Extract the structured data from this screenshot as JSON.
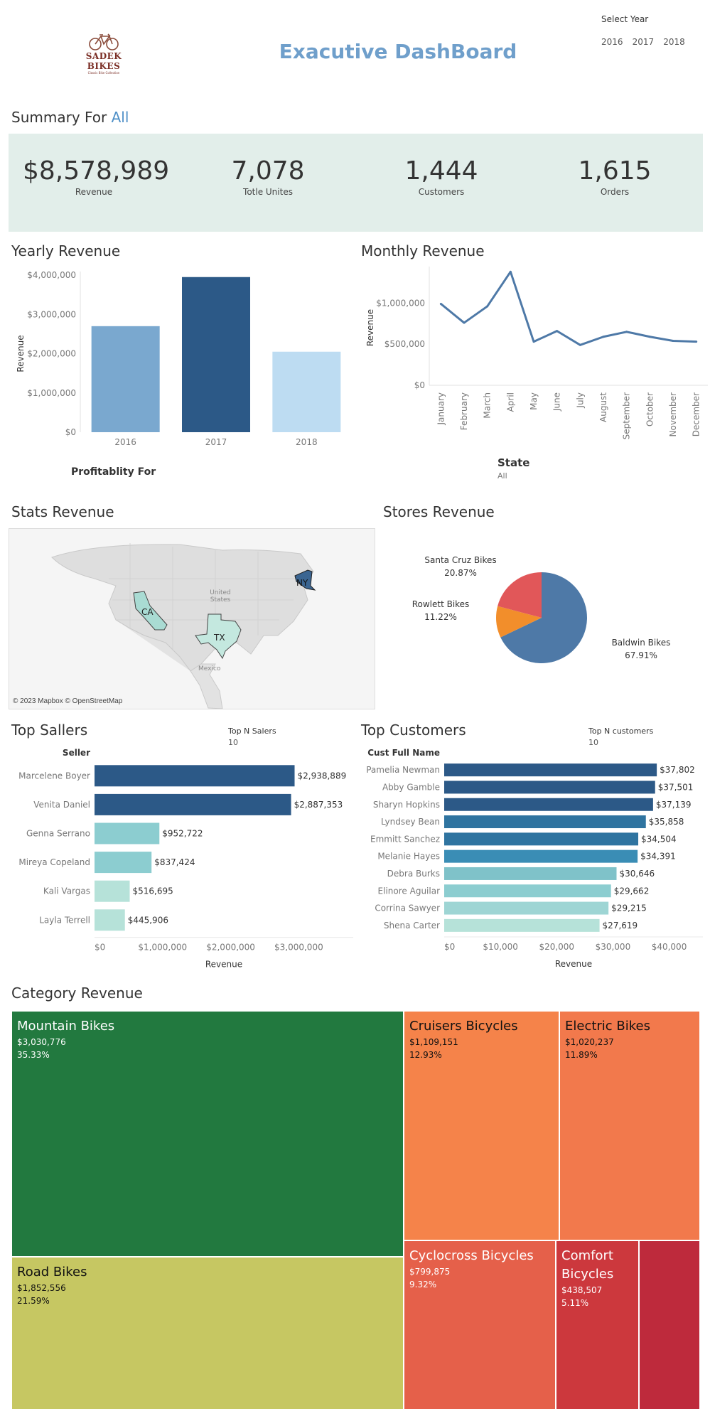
{
  "header": {
    "logo_text": "SADEK BIKES",
    "logo_sub": "Classic Bike Collection",
    "title": "Exacutive DashBoard",
    "year_filter_label": "Select Year",
    "year_options": [
      "2016",
      "2017",
      "2018"
    ]
  },
  "summary": {
    "title_prefix": "Summary For",
    "title_value": "All",
    "kpis": [
      {
        "value": "$8,578,989",
        "label": "Revenue"
      },
      {
        "value": "7,078",
        "label": "Totle Unites"
      },
      {
        "value": "1,444",
        "label": "Customers"
      },
      {
        "value": "1,615",
        "label": "Orders"
      }
    ]
  },
  "yearly": {
    "title": "Yearly Revenue"
  },
  "monthly": {
    "title": "Monthly Revenue"
  },
  "profitability_label": "Profitablity For",
  "state_filter": {
    "label": "State",
    "value": "All"
  },
  "stats_map": {
    "title": "Stats Revenue",
    "states": [
      "CA",
      "TX",
      "NY"
    ],
    "labels": {
      "country": "United States",
      "mexico": "Mexico"
    },
    "attribution": "© 2023 Mapbox © OpenStreetMap"
  },
  "stores": {
    "title": "Stores Revenue"
  },
  "top_sellers": {
    "title": "Top Sallers",
    "filter_label": "Top N Salers",
    "filter_value": "10",
    "column_header": "Seller"
  },
  "top_customers": {
    "title": "Top Customers",
    "filter_label": "Top N customers",
    "filter_value": "10",
    "column_header": "Cust Full Name"
  },
  "category": {
    "title": "Category Revenue"
  },
  "colors": {
    "accent": "#4e79a7",
    "kpi_band": "#e2eeea",
    "title_blue": "#6f9fcb"
  },
  "chart_data": [
    {
      "id": "yearly",
      "type": "bar",
      "categories": [
        "2016",
        "2017",
        "2018"
      ],
      "values": [
        2700000,
        3950000,
        2050000
      ],
      "colors": [
        "#7aa8cf",
        "#2c5987",
        "#bddcf2"
      ],
      "ylabel": "Revenue",
      "ylim": [
        0,
        4000000
      ],
      "yticks": [
        "$0",
        "$1,000,000",
        "$2,000,000",
        "$3,000,000",
        "$4,000,000"
      ]
    },
    {
      "id": "monthly",
      "type": "line",
      "categories": [
        "January",
        "February",
        "March",
        "April",
        "May",
        "June",
        "July",
        "August",
        "September",
        "October",
        "November",
        "December"
      ],
      "values": [
        990000,
        760000,
        960000,
        1380000,
        530000,
        660000,
        490000,
        590000,
        650000,
        590000,
        540000,
        530000
      ],
      "ylabel": "Revenue",
      "ylim": [
        0,
        1400000
      ],
      "yticks": [
        "$0",
        "$500,000",
        "$1,000,000"
      ]
    },
    {
      "id": "stores",
      "type": "pie",
      "slices": [
        {
          "name": "Baldwin Bikes",
          "pct_label": "67.91%",
          "value": 67.91,
          "color": "#4e79a7"
        },
        {
          "name": "Rowlett Bikes",
          "pct_label": "11.22%",
          "value": 11.22,
          "color": "#f28e2b"
        },
        {
          "name": "Santa Cruz Bikes",
          "pct_label": "20.87%",
          "value": 20.87,
          "color": "#e15759"
        }
      ]
    },
    {
      "id": "sellers",
      "type": "bar",
      "orientation": "horizontal",
      "categories": [
        "Marcelene Boyer",
        "Venita Daniel",
        "Genna Serrano",
        "Mireya Copeland",
        "Kali Vargas",
        "Layla Terrell"
      ],
      "values": [
        2938889,
        2887353,
        952722,
        837424,
        516695,
        445906
      ],
      "value_labels": [
        "$2,938,889",
        "$2,887,353",
        "$952,722",
        "$837,424",
        "$516,695",
        "$445,906"
      ],
      "colors": [
        "#2c5987",
        "#2c5987",
        "#8ccdd0",
        "#8ccdd0",
        "#b6e2d9",
        "#b6e2d9"
      ],
      "xlabel": "Revenue",
      "xlim": [
        0,
        3800000
      ],
      "xticks": [
        {
          "v": 0,
          "t": "$0"
        },
        {
          "v": 1000000,
          "t": "$1,000,000"
        },
        {
          "v": 2000000,
          "t": "$2,000,000"
        },
        {
          "v": 3000000,
          "t": "$3,000,000"
        }
      ]
    },
    {
      "id": "customers",
      "type": "bar",
      "orientation": "horizontal",
      "categories": [
        "Pamelia Newman",
        "Abby Gamble",
        "Sharyn Hopkins",
        "Lyndsey Bean",
        "Emmitt Sanchez",
        "Melanie Hayes",
        "Debra Burks",
        "Elinore Aguilar",
        "Corrina Sawyer",
        "Shena Carter"
      ],
      "values": [
        37802,
        37501,
        37139,
        35858,
        34504,
        34391,
        30646,
        29662,
        29215,
        27619
      ],
      "value_labels": [
        "$37,802",
        "$37,501",
        "$37,139",
        "$35,858",
        "$34,504",
        "$34,391",
        "$30,646",
        "$29,662",
        "$29,215",
        "$27,619"
      ],
      "colors": [
        "#2c5987",
        "#2c5987",
        "#2c5987",
        "#2f74a0",
        "#2f74a0",
        "#3a8db5",
        "#7fc2c9",
        "#8ccdd0",
        "#9ed5d4",
        "#b6e2d9"
      ],
      "xlabel": "Revenue",
      "xlim": [
        0,
        46000
      ],
      "xticks": [
        {
          "v": 0,
          "t": "$0"
        },
        {
          "v": 10000,
          "t": "$10,000"
        },
        {
          "v": 20000,
          "t": "$20,000"
        },
        {
          "v": 30000,
          "t": "$30,000"
        },
        {
          "v": 40000,
          "t": "$40,000"
        }
      ]
    },
    {
      "id": "category",
      "type": "treemap",
      "cells": [
        {
          "name": "Mountain Bikes",
          "value_label": "$3,030,776",
          "pct": "35.33%",
          "color": "#22793f",
          "text": "#fff"
        },
        {
          "name": "Road Bikes",
          "value_label": "$1,852,556",
          "pct": "21.59%",
          "color": "#c6c762",
          "text": "#111"
        },
        {
          "name": "Cruisers Bicycles",
          "value_label": "$1,109,151",
          "pct": "12.93%",
          "color": "#f5834a",
          "text": "#111"
        },
        {
          "name": "Electric Bikes",
          "value_label": "$1,020,237",
          "pct": "11.89%",
          "color": "#f2794c",
          "text": "#111"
        },
        {
          "name": "Cyclocross Bicycles",
          "value_label": "$799,875",
          "pct": "9.32%",
          "color": "#e5604a",
          "text": "#fff"
        },
        {
          "name": "Comfort Bicycles",
          "value_label": "$438,507",
          "pct": "5.11%",
          "color": "#cc383d",
          "text": "#fff"
        },
        {
          "name": "",
          "value_label": "",
          "pct": "",
          "color": "#be2a3c",
          "text": "#fff"
        }
      ]
    }
  ]
}
